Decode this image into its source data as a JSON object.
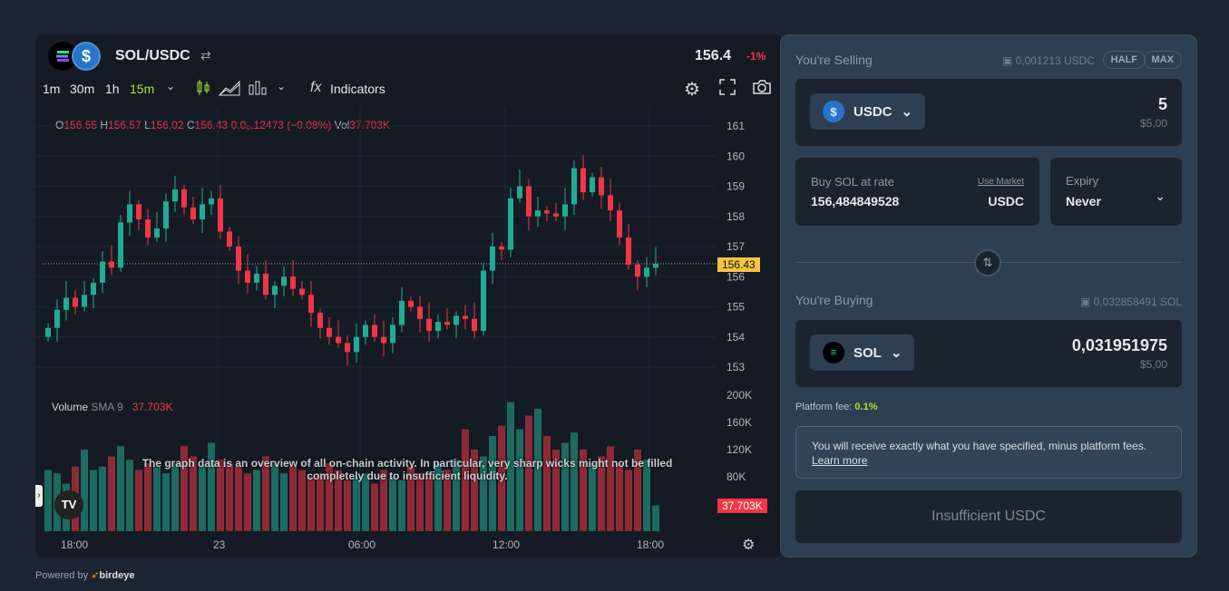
{
  "chart": {
    "pair": "SOL/USDC",
    "price": "156.4",
    "change": "-1%",
    "timeframes": [
      "1m",
      "30m",
      "1h",
      "15m"
    ],
    "indicators_label": "Indicators",
    "ohlc": {
      "o_label": "O",
      "o": "156.55",
      "h_label": "H",
      "h": "156.57",
      "l_label": "L",
      "l": "156.02",
      "c_label": "C",
      "c": "156.43",
      "change": "0.0₀.12473 (−0.08%)",
      "vol_label": "Vol",
      "vol": "37.703K"
    },
    "volume_legend": {
      "label": "Volume",
      "sma": "SMA 9",
      "value": "37.703K"
    },
    "price_ticks": [
      "161",
      "160",
      "159",
      "158",
      "157",
      "156",
      "155",
      "154",
      "153"
    ],
    "volume_ticks": [
      "200K",
      "160K",
      "120K",
      "80K"
    ],
    "current_price_tag": "156.43",
    "current_volume_tag": "37.703K",
    "time_ticks": [
      "18:00",
      "23",
      "06:00",
      "12:00",
      "18:00"
    ],
    "notice": "The graph data is an overview of all on-chain activity. In particular, very sharp wicks might not be filled completely due to insufficient liquidity.",
    "powered_by": "Powered by",
    "brand": "birdeye",
    "colors": {
      "up": "#22ab94",
      "down": "#f23645",
      "accent": "#a3e635"
    }
  },
  "chart_data": {
    "type": "candlestick",
    "ylim": [
      152.8,
      161.2
    ],
    "closes": [
      154.3,
      154.9,
      155.3,
      155.0,
      155.4,
      155.8,
      156.5,
      156.3,
      157.8,
      158.4,
      157.9,
      157.3,
      157.6,
      158.5,
      158.9,
      158.3,
      157.9,
      158.4,
      158.6,
      157.5,
      157.0,
      156.2,
      155.8,
      156.1,
      155.4,
      155.7,
      156.0,
      155.6,
      155.4,
      154.8,
      154.3,
      154.0,
      153.8,
      153.5,
      154.0,
      154.4,
      154.0,
      153.8,
      154.4,
      155.2,
      155.0,
      154.6,
      154.2,
      154.5,
      154.4,
      154.7,
      154.6,
      154.2,
      156.2,
      157.0,
      156.9,
      158.6,
      159.0,
      158.0,
      158.2,
      158.1,
      158.0,
      158.4,
      159.6,
      158.8,
      159.3,
      158.7,
      158.2,
      157.3,
      156.4,
      156.0,
      156.3,
      156.43
    ],
    "volumes_k": [
      90,
      85,
      70,
      95,
      120,
      90,
      95,
      110,
      125,
      105,
      90,
      100,
      95,
      85,
      100,
      125,
      110,
      95,
      130,
      105,
      100,
      95,
      85,
      90,
      110,
      100,
      85,
      95,
      90,
      80,
      85,
      100,
      90,
      75,
      80,
      85,
      70,
      90,
      80,
      75,
      95,
      85,
      80,
      100,
      90,
      105,
      150,
      120,
      110,
      140,
      155,
      190,
      150,
      170,
      180,
      140,
      120,
      130,
      145,
      120,
      100,
      110,
      125,
      100,
      90,
      120,
      105,
      38
    ]
  },
  "swap": {
    "selling_label": "You're Selling",
    "selling_balance": "0,001213 USDC",
    "half": "HALF",
    "max": "MAX",
    "sell_token": "USDC",
    "sell_amount": "5",
    "sell_usd": "$5,00",
    "rate_label": "Buy SOL at rate",
    "use_market": "Use Market",
    "rate_value": "156,484849528",
    "rate_unit": "USDC",
    "expiry_label": "Expiry",
    "expiry_value": "Never",
    "buying_label": "You're Buying",
    "buying_balance": "0,032858491 SOL",
    "buy_token": "SOL",
    "buy_amount": "0,031951975",
    "buy_usd": "$5,00",
    "fee_label": "Platform fee:",
    "fee_value": "0.1%",
    "info_text": "You will receive exactly what you have specified, minus platform fees.",
    "learn_more": "Learn more",
    "submit": "Insufficient USDC"
  }
}
